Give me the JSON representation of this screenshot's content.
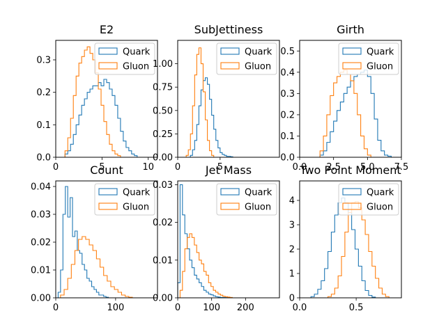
{
  "colors": {
    "quark": "#1f77b4",
    "gluon": "#ff7f0e"
  },
  "chart_data": [
    {
      "type": "histogram",
      "title": "E2",
      "xlim": [
        0,
        11
      ],
      "ylim": [
        0,
        0.36
      ],
      "xticks": [
        0,
        5,
        10
      ],
      "yticks": [
        0.0,
        0.1,
        0.2,
        0.3
      ],
      "xtick_labels": [
        "0",
        "5",
        "10"
      ],
      "ytick_labels": [
        "0.0",
        "0.1",
        "0.2",
        "0.3"
      ],
      "legend": {
        "placement": "upper-right",
        "entries": [
          "Quark",
          "Gluon"
        ]
      },
      "series": [
        {
          "name": "Quark",
          "color": "#1f77b4",
          "bins": [
            1.0,
            1.3,
            1.6,
            1.9,
            2.2,
            2.5,
            2.8,
            3.1,
            3.4,
            3.7,
            4.0,
            4.3,
            4.6,
            4.9,
            5.2,
            5.5,
            5.8,
            6.1,
            6.4,
            6.7,
            7.0,
            7.3,
            7.6,
            7.9,
            8.2,
            8.5,
            8.8
          ],
          "values": [
            0.01,
            0.02,
            0.04,
            0.07,
            0.1,
            0.13,
            0.16,
            0.18,
            0.2,
            0.21,
            0.22,
            0.22,
            0.23,
            0.22,
            0.24,
            0.23,
            0.21,
            0.19,
            0.16,
            0.12,
            0.08,
            0.05,
            0.03,
            0.02,
            0.01,
            0.005
          ]
        },
        {
          "name": "Gluon",
          "color": "#ff7f0e",
          "bins": [
            1.0,
            1.3,
            1.6,
            1.9,
            2.2,
            2.5,
            2.8,
            3.1,
            3.4,
            3.7,
            4.0,
            4.3,
            4.6,
            4.9,
            5.2,
            5.5,
            5.8,
            6.1,
            6.4,
            6.7,
            7.0
          ],
          "values": [
            0.02,
            0.06,
            0.12,
            0.19,
            0.25,
            0.29,
            0.31,
            0.33,
            0.34,
            0.32,
            0.3,
            0.26,
            0.21,
            0.16,
            0.11,
            0.07,
            0.04,
            0.02,
            0.01,
            0.005
          ]
        }
      ]
    },
    {
      "type": "histogram",
      "title": "SubJettiness",
      "xlim": [
        0,
        12
      ],
      "ylim": [
        0,
        1.25
      ],
      "xticks": [
        0,
        5
      ],
      "yticks": [
        0.0,
        0.25,
        0.5,
        0.75,
        1.0
      ],
      "xtick_labels": [
        "0",
        "5"
      ],
      "ytick_labels": [
        "0.00",
        "0.25",
        "0.50",
        "0.75",
        "1.00"
      ],
      "legend": {
        "placement": "upper-right",
        "entries": [
          "Quark",
          "Gluon"
        ]
      },
      "series": [
        {
          "name": "Quark",
          "color": "#1f77b4",
          "bins": [
            1.5,
            1.75,
            2.0,
            2.25,
            2.5,
            2.75,
            3.0,
            3.25,
            3.5,
            3.75,
            4.0,
            4.25,
            4.5,
            4.75,
            5.0,
            5.25,
            5.5,
            5.75,
            6.0,
            6.25,
            6.5
          ],
          "values": [
            0.02,
            0.08,
            0.18,
            0.35,
            0.55,
            0.72,
            0.82,
            0.85,
            0.78,
            0.62,
            0.45,
            0.3,
            0.18,
            0.1,
            0.05,
            0.03,
            0.02,
            0.01,
            0.01,
            0.005
          ]
        },
        {
          "name": "Gluon",
          "color": "#ff7f0e",
          "bins": [
            1.0,
            1.25,
            1.5,
            1.75,
            2.0,
            2.25,
            2.5,
            2.75,
            3.0,
            3.25,
            3.5,
            3.75,
            4.0,
            4.25
          ],
          "values": [
            0.02,
            0.08,
            0.25,
            0.55,
            0.88,
            1.1,
            1.17,
            1.0,
            0.7,
            0.4,
            0.18,
            0.07,
            0.02
          ]
        }
      ]
    },
    {
      "type": "histogram",
      "title": "Girth",
      "xlim": [
        0,
        7.5
      ],
      "ylim": [
        0,
        0.55
      ],
      "xticks": [
        0.0,
        2.5,
        5.0,
        7.5
      ],
      "yticks": [
        0.0,
        0.1,
        0.2,
        0.3,
        0.4,
        0.5
      ],
      "xtick_labels": [
        "0.0",
        "2.5",
        "5.0",
        "7.5"
      ],
      "ytick_labels": [
        "0.0",
        "0.1",
        "0.2",
        "0.3",
        "0.4",
        "0.5"
      ],
      "legend": {
        "placement": "upper-right",
        "entries": [
          "Quark",
          "Gluon"
        ]
      },
      "series": [
        {
          "name": "Quark",
          "color": "#1f77b4",
          "bins": [
            1.5,
            1.75,
            2.0,
            2.25,
            2.5,
            2.75,
            3.0,
            3.25,
            3.5,
            3.75,
            4.0,
            4.25,
            4.5,
            4.75,
            5.0,
            5.25,
            5.5,
            5.75,
            6.0,
            6.25,
            6.5,
            6.75
          ],
          "values": [
            0.01,
            0.03,
            0.07,
            0.12,
            0.17,
            0.22,
            0.26,
            0.3,
            0.33,
            0.36,
            0.38,
            0.39,
            0.4,
            0.41,
            0.38,
            0.3,
            0.18,
            0.08,
            0.03,
            0.01,
            0.005
          ]
        },
        {
          "name": "Gluon",
          "color": "#ff7f0e",
          "bins": [
            1.5,
            1.75,
            2.0,
            2.25,
            2.5,
            2.75,
            3.0,
            3.25,
            3.5,
            3.75,
            4.0,
            4.25,
            4.5,
            4.75,
            5.0,
            5.25
          ],
          "values": [
            0.03,
            0.1,
            0.2,
            0.29,
            0.35,
            0.38,
            0.4,
            0.41,
            0.39,
            0.36,
            0.3,
            0.2,
            0.1,
            0.04,
            0.01
          ]
        }
      ]
    },
    {
      "type": "histogram",
      "title": "Count",
      "xlim": [
        0,
        170
      ],
      "ylim": [
        0,
        0.042
      ],
      "xticks": [
        0,
        100
      ],
      "yticks": [
        0.0,
        0.01,
        0.02,
        0.03,
        0.04
      ],
      "xtick_labels": [
        "0",
        "100"
      ],
      "ytick_labels": [
        "0.00",
        "0.01",
        "0.02",
        "0.03",
        "0.04"
      ],
      "legend": {
        "placement": "upper-right",
        "entries": [
          "Quark",
          "Gluon"
        ]
      },
      "series": [
        {
          "name": "Quark",
          "color": "#1f77b4",
          "bins": [
            4,
            8,
            12,
            16,
            20,
            24,
            28,
            32,
            36,
            40,
            44,
            48,
            52,
            56,
            60,
            64,
            68,
            72,
            76,
            80,
            84,
            88
          ],
          "values": [
            0.002,
            0.01,
            0.03,
            0.04,
            0.029,
            0.036,
            0.022,
            0.024,
            0.017,
            0.016,
            0.012,
            0.01,
            0.007,
            0.006,
            0.004,
            0.003,
            0.002,
            0.001,
            0.001,
            0.0005,
            0.0002
          ]
        },
        {
          "name": "Gluon",
          "color": "#ff7f0e",
          "bins": [
            8,
            14,
            20,
            26,
            32,
            38,
            44,
            50,
            56,
            62,
            68,
            74,
            80,
            86,
            92,
            98,
            104,
            110,
            116,
            122,
            128
          ],
          "values": [
            0.001,
            0.003,
            0.007,
            0.012,
            0.017,
            0.021,
            0.022,
            0.021,
            0.019,
            0.017,
            0.014,
            0.011,
            0.008,
            0.006,
            0.004,
            0.003,
            0.002,
            0.001,
            0.0005,
            0.0002
          ]
        }
      ]
    },
    {
      "type": "histogram",
      "title": "Jet Mass",
      "xlim": [
        0,
        300
      ],
      "ylim": [
        0,
        0.031
      ],
      "xticks": [
        0,
        100,
        200
      ],
      "yticks": [
        0.0,
        0.01,
        0.02,
        0.03
      ],
      "xtick_labels": [
        "0",
        "100",
        "200"
      ],
      "ytick_labels": [
        "0.00",
        "0.01",
        "0.02",
        "0.03"
      ],
      "legend": {
        "placement": "upper-right",
        "entries": [
          "Quark",
          "Gluon"
        ]
      },
      "series": [
        {
          "name": "Quark",
          "color": "#1f77b4",
          "bins": [
            0,
            7,
            14,
            21,
            28,
            35,
            42,
            49,
            56,
            63,
            70,
            77,
            84,
            91,
            98,
            105,
            112,
            119,
            126,
            133,
            140,
            147
          ],
          "values": [
            0.004,
            0.03,
            0.022,
            0.017,
            0.013,
            0.01,
            0.008,
            0.006,
            0.005,
            0.004,
            0.003,
            0.002,
            0.0015,
            0.001,
            0.0008,
            0.0005,
            0.0003,
            0.0002,
            0.0001,
            0.0001,
            5e-05
          ]
        },
        {
          "name": "Gluon",
          "color": "#ff7f0e",
          "bins": [
            7,
            14,
            21,
            28,
            35,
            42,
            49,
            56,
            63,
            70,
            77,
            84,
            91,
            98,
            105,
            112,
            119,
            126,
            133,
            140,
            147,
            154,
            161
          ],
          "values": [
            0.002,
            0.007,
            0.013,
            0.016,
            0.017,
            0.016,
            0.014,
            0.012,
            0.01,
            0.009,
            0.007,
            0.006,
            0.004,
            0.003,
            0.002,
            0.0015,
            0.001,
            0.0007,
            0.0004,
            0.0003,
            0.0002,
            0.0001
          ]
        }
      ]
    },
    {
      "type": "histogram",
      "title": "Two Point Moment",
      "xlim": [
        0,
        0.9
      ],
      "ylim": [
        0,
        4.8
      ],
      "xticks": [
        0.0,
        0.5
      ],
      "yticks": [
        0,
        1,
        2,
        3,
        4
      ],
      "xtick_labels": [
        "0.0",
        "0.5"
      ],
      "ytick_labels": [
        "0",
        "1",
        "2",
        "3",
        "4"
      ],
      "legend": {
        "placement": "upper-right",
        "entries": [
          "Quark",
          "Gluon"
        ]
      },
      "series": [
        {
          "name": "Quark",
          "color": "#1f77b4",
          "bins": [
            0.1,
            0.13,
            0.16,
            0.19,
            0.22,
            0.25,
            0.28,
            0.31,
            0.34,
            0.37,
            0.4,
            0.43,
            0.46,
            0.49,
            0.52,
            0.55,
            0.58,
            0.61,
            0.64,
            0.67
          ],
          "values": [
            0.05,
            0.15,
            0.35,
            0.7,
            1.2,
            1.9,
            2.7,
            3.4,
            3.9,
            4.1,
            3.9,
            3.5,
            2.8,
            2.0,
            1.3,
            0.7,
            0.3,
            0.1,
            0.03
          ]
        },
        {
          "name": "Gluon",
          "color": "#ff7f0e",
          "bins": [
            0.25,
            0.28,
            0.31,
            0.34,
            0.37,
            0.4,
            0.43,
            0.46,
            0.49,
            0.52,
            0.55,
            0.58,
            0.61,
            0.64,
            0.67,
            0.7,
            0.73,
            0.76,
            0.79
          ],
          "values": [
            0.05,
            0.15,
            0.4,
            0.9,
            1.7,
            2.7,
            3.5,
            3.9,
            3.95,
            3.7,
            3.2,
            2.6,
            1.9,
            1.3,
            0.8,
            0.4,
            0.15,
            0.05
          ]
        }
      ]
    }
  ]
}
